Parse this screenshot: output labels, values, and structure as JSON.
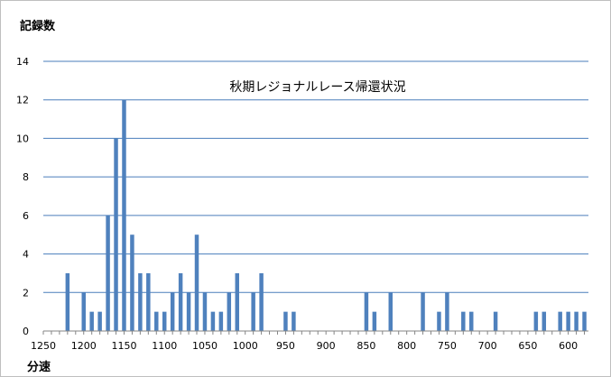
{
  "chart_data": {
    "type": "bar",
    "title": "秋期レジョナルレース帰還状況",
    "xlabel": "分速",
    "ylabel": "記録数",
    "ylim": [
      0,
      14
    ],
    "yticks": [
      0,
      2,
      4,
      6,
      8,
      10,
      12,
      14
    ],
    "xlim": [
      1250,
      575
    ],
    "xticks": [
      1250,
      1200,
      1150,
      1100,
      1050,
      1000,
      950,
      900,
      850,
      800,
      750,
      700,
      650,
      600
    ],
    "x_reversed": true,
    "bin_width": 10,
    "grid": true,
    "bar_color": "#4f81bd",
    "bins": [
      {
        "x": 1220,
        "value": 3
      },
      {
        "x": 1200,
        "value": 2
      },
      {
        "x": 1190,
        "value": 1
      },
      {
        "x": 1180,
        "value": 1
      },
      {
        "x": 1170,
        "value": 6
      },
      {
        "x": 1160,
        "value": 10
      },
      {
        "x": 1150,
        "value": 12
      },
      {
        "x": 1140,
        "value": 5
      },
      {
        "x": 1130,
        "value": 3
      },
      {
        "x": 1120,
        "value": 3
      },
      {
        "x": 1110,
        "value": 1
      },
      {
        "x": 1100,
        "value": 1
      },
      {
        "x": 1090,
        "value": 2
      },
      {
        "x": 1080,
        "value": 3
      },
      {
        "x": 1070,
        "value": 2
      },
      {
        "x": 1060,
        "value": 5
      },
      {
        "x": 1050,
        "value": 2
      },
      {
        "x": 1040,
        "value": 1
      },
      {
        "x": 1030,
        "value": 1
      },
      {
        "x": 1020,
        "value": 2
      },
      {
        "x": 1010,
        "value": 3
      },
      {
        "x": 990,
        "value": 2
      },
      {
        "x": 980,
        "value": 3
      },
      {
        "x": 950,
        "value": 1
      },
      {
        "x": 940,
        "value": 1
      },
      {
        "x": 850,
        "value": 2
      },
      {
        "x": 840,
        "value": 1
      },
      {
        "x": 820,
        "value": 2
      },
      {
        "x": 780,
        "value": 2
      },
      {
        "x": 760,
        "value": 1
      },
      {
        "x": 750,
        "value": 2
      },
      {
        "x": 730,
        "value": 1
      },
      {
        "x": 720,
        "value": 1
      },
      {
        "x": 690,
        "value": 1
      },
      {
        "x": 640,
        "value": 1
      },
      {
        "x": 630,
        "value": 1
      },
      {
        "x": 610,
        "value": 1
      },
      {
        "x": 600,
        "value": 1
      },
      {
        "x": 590,
        "value": 1
      },
      {
        "x": 580,
        "value": 1
      }
    ]
  }
}
